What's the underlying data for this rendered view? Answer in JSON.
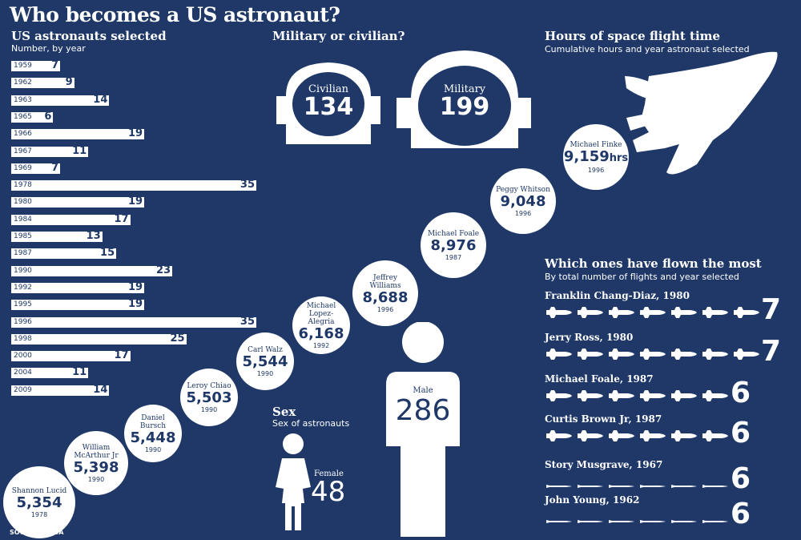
{
  "title": "Who becomes a US astronaut?",
  "selected": {
    "heading": "US astronauts selected",
    "subheading": "Number, by year"
  },
  "military": {
    "heading": "Military or civilian?",
    "civilian_label": "Civilian",
    "civilian_value": "134",
    "military_label": "Military",
    "military_value": "199"
  },
  "hours": {
    "heading": "Hours of space flight time",
    "subheading": "Cumulative hours and year astronaut selected"
  },
  "sex": {
    "heading": "Sex",
    "subheading": "Sex of astronauts",
    "male_label": "Male",
    "male_value": "286",
    "female_label": "Female",
    "female_value": "48"
  },
  "flown": {
    "heading": "Which ones have flown the most",
    "subheading": "By total number of flights and year selected",
    "rows": [
      {
        "name": "Franklin Chang-Diaz, 1980",
        "count": 7,
        "label": "7",
        "style": "shuttle"
      },
      {
        "name": "Jerry Ross, 1980",
        "count": 7,
        "label": "7",
        "style": "shuttle"
      },
      {
        "name": "Michael Foale, 1987",
        "count": 6,
        "label": "6",
        "style": "shuttle"
      },
      {
        "name": "Curtis Brown Jr, 1987",
        "count": 6,
        "label": "6",
        "style": "shuttle"
      },
      {
        "name": "Story Musgrave, 1967",
        "count": 6,
        "label": "6",
        "style": "rocket"
      },
      {
        "name": "John Young, 1962",
        "count": 6,
        "label": "6",
        "style": "rocket"
      }
    ]
  },
  "source": "SOURCE: NASA",
  "colors": {
    "background": "#1f3868",
    "foreground": "#ffffff"
  },
  "chart_data": [
    {
      "type": "bar",
      "title": "US astronauts selected",
      "ylabel": "Number, by year",
      "categories": [
        "1959",
        "1962",
        "1963",
        "1965",
        "1966",
        "1967",
        "1969",
        "1978",
        "1980",
        "1984",
        "1985",
        "1987",
        "1990",
        "1992",
        "1995",
        "1996",
        "1998",
        "2000",
        "2004",
        "2009"
      ],
      "values": [
        7,
        9,
        14,
        6,
        19,
        11,
        7,
        35,
        19,
        17,
        13,
        15,
        23,
        19,
        19,
        35,
        25,
        17,
        11,
        14
      ],
      "xlim": [
        0,
        35
      ]
    },
    {
      "type": "scatter",
      "title": "Hours of space flight time",
      "points": [
        {
          "name": "Shannon Lucid",
          "hours": "5,354",
          "year": "1978"
        },
        {
          "name": "William McArthur Jr",
          "hours": "5,398",
          "year": "1990"
        },
        {
          "name": "Daniel Bursch",
          "hours": "5,448",
          "year": "1990"
        },
        {
          "name": "Leroy Chiao",
          "hours": "5,503",
          "year": "1990"
        },
        {
          "name": "Carl Walz",
          "hours": "5,544",
          "year": "1990"
        },
        {
          "name": "Michael Lopez-Alegria",
          "hours": "6,168",
          "year": "1992"
        },
        {
          "name": "Jeffrey Williams",
          "hours": "8,688",
          "year": "1996"
        },
        {
          "name": "Michael Foale",
          "hours": "8,976",
          "year": "1987"
        },
        {
          "name": "Peggy Whitson",
          "hours": "9,048",
          "year": "1996"
        },
        {
          "name": "Michael Finke",
          "hours": "9,159",
          "year": "1996",
          "unit": "hrs"
        }
      ]
    }
  ]
}
